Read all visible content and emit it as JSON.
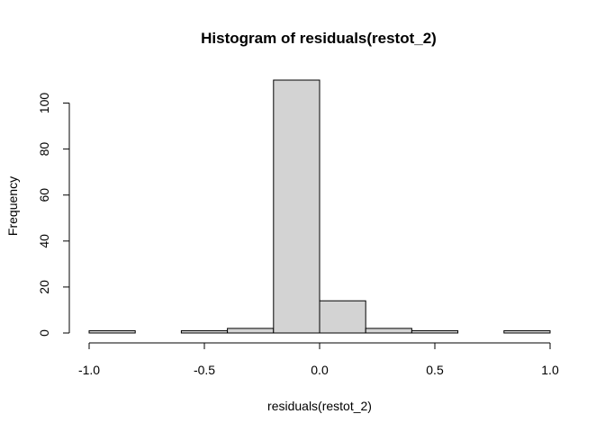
{
  "chart_data": {
    "type": "bar",
    "title": "Histogram of residuals(restot_2)",
    "xlabel": "residuals(restot_2)",
    "ylabel": "Frequency",
    "bins": [
      {
        "start": -1.0,
        "end": -0.8,
        "count": 1
      },
      {
        "start": -0.8,
        "end": -0.6,
        "count": 0
      },
      {
        "start": -0.6,
        "end": -0.4,
        "count": 1
      },
      {
        "start": -0.4,
        "end": -0.2,
        "count": 2
      },
      {
        "start": -0.2,
        "end": 0.0,
        "count": 110
      },
      {
        "start": 0.0,
        "end": 0.2,
        "count": 14
      },
      {
        "start": 0.2,
        "end": 0.4,
        "count": 2
      },
      {
        "start": 0.4,
        "end": 0.6,
        "count": 1
      },
      {
        "start": 0.6,
        "end": 0.8,
        "count": 0
      },
      {
        "start": 0.8,
        "end": 1.0,
        "count": 1
      }
    ],
    "xlim": [
      -1.0,
      1.0
    ],
    "ylim": [
      0,
      110
    ],
    "x_ticks": [
      -1.0,
      -0.5,
      0.0,
      0.5,
      1.0
    ],
    "x_tick_labels": [
      "-1.0",
      "-0.5",
      "0.0",
      "0.5",
      "1.0"
    ],
    "y_ticks": [
      0,
      20,
      40,
      60,
      80,
      100
    ],
    "y_tick_labels": [
      "0",
      "20",
      "40",
      "60",
      "80",
      "100"
    ],
    "grid": false,
    "bar_fill": "#d3d3d3",
    "bar_stroke": "#000000"
  }
}
